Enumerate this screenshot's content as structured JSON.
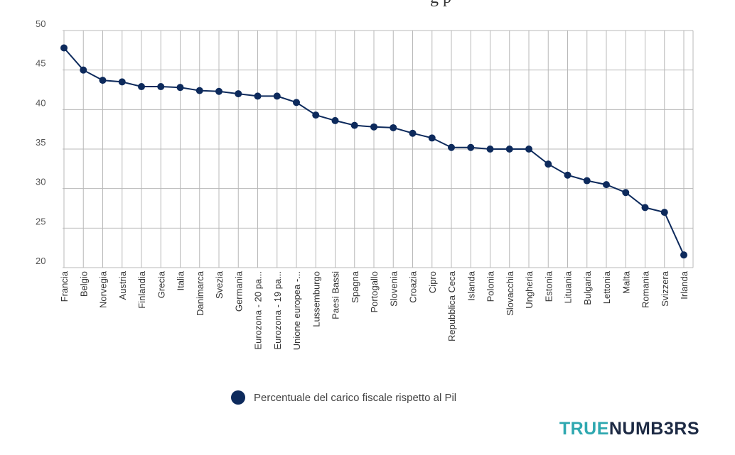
{
  "header": {
    "title_fragment": "g p"
  },
  "colors": {
    "series": "#0d2a5c",
    "brand_accent": "#2fa8b0",
    "brand_dark": "#1d2a44"
  },
  "chart_data": {
    "type": "line",
    "categories": [
      "Francia",
      "Belgio",
      "Norvegia",
      "Austria",
      "Finlandia",
      "Grecia",
      "Italia",
      "Danimarca",
      "Svezia",
      "Germania",
      "Eurozona - 20 pa...",
      "Eurozona - 19 pa...",
      "Unione europea -...",
      "Lussemburgo",
      "Paesi Bassi",
      "Spagna",
      "Portogallo",
      "Slovenia",
      "Croazia",
      "Cipro",
      "Repubblica Ceca",
      "Islanda",
      "Polonia",
      "Slovacchia",
      "Ungheria",
      "Estonia",
      "Lituania",
      "Bulgaria",
      "Lettonia",
      "Malta",
      "Romania",
      "Svizzera",
      "Irlanda"
    ],
    "series": [
      {
        "name": "Percentuale del carico fiscale rispetto al Pil",
        "values": [
          47.8,
          45.0,
          43.7,
          43.5,
          42.9,
          42.9,
          42.8,
          42.4,
          42.3,
          42.0,
          41.7,
          41.7,
          40.9,
          39.3,
          38.6,
          38.0,
          37.8,
          37.7,
          37.0,
          36.4,
          35.2,
          35.2,
          35.0,
          35.0,
          35.0,
          33.1,
          31.7,
          31.0,
          30.5,
          29.5,
          27.6,
          27.0,
          21.6
        ]
      }
    ],
    "ylim": [
      20,
      50
    ],
    "yticks": [
      "20",
      "25",
      "30",
      "35",
      "40",
      "45",
      "50"
    ],
    "xlabel": "",
    "ylabel": "",
    "grid": true,
    "legend": "bottom-center"
  },
  "legend": {
    "label": "Percentuale del carico fiscale rispetto al Pil"
  },
  "brand": {
    "part1": "TRUE",
    "part2": "NUMB3RS"
  }
}
